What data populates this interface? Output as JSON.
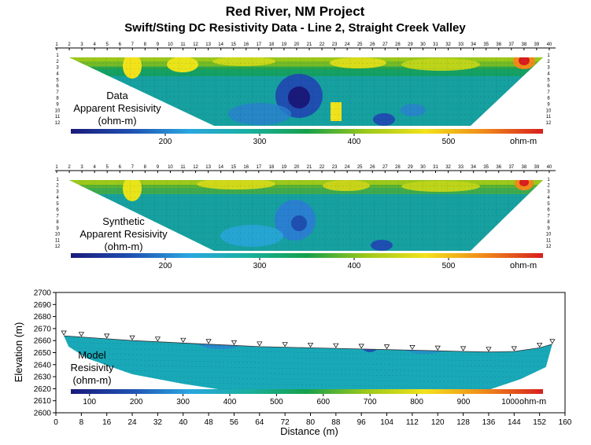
{
  "title": "Red River, NM Project",
  "subtitle": "Swift/Sting DC Resistivity Data - Line 2, Straight Creek Valley",
  "colors": {
    "scale": [
      "#1a1a7a",
      "#1f4fb0",
      "#2aa6e0",
      "#19b0a0",
      "#16a04a",
      "#9cc81a",
      "#f2e21a",
      "#f08a1a",
      "#d81e1e"
    ]
  },
  "chart_data": [
    {
      "type": "heatmap",
      "panel_label": [
        "Data",
        "Apparent Resisivity",
        "(ohm-m)"
      ],
      "electrode_labels": [
        "1",
        "2",
        "3",
        "4",
        "5",
        "6",
        "7",
        "8",
        "9",
        "10",
        "11",
        "12",
        "13",
        "14",
        "15",
        "16",
        "17",
        "18",
        "19",
        "20",
        "21",
        "22",
        "23",
        "24",
        "25",
        "26",
        "27",
        "28",
        "29",
        "30",
        "31",
        "32",
        "33",
        "34",
        "35",
        "36",
        "37",
        "38",
        "39",
        "40"
      ],
      "level_labels": [
        "1",
        "2",
        "3",
        "4",
        "5",
        "6",
        "7",
        "8",
        "9",
        "10",
        "11",
        "12"
      ],
      "colorbar": {
        "ticks": [
          "200",
          "300",
          "400",
          "500"
        ],
        "unit": "ohm-m",
        "range": [
          100,
          600
        ]
      }
    },
    {
      "type": "heatmap",
      "panel_label": [
        "Synthetic",
        "Apparent Resisivity",
        "(ohm-m)"
      ],
      "electrode_labels": [
        "1",
        "2",
        "3",
        "4",
        "5",
        "6",
        "7",
        "8",
        "9",
        "10",
        "11",
        "12",
        "13",
        "14",
        "15",
        "16",
        "17",
        "18",
        "19",
        "20",
        "21",
        "22",
        "23",
        "24",
        "25",
        "26",
        "27",
        "28",
        "29",
        "30",
        "31",
        "32",
        "33",
        "34",
        "35",
        "36",
        "37",
        "38",
        "39",
        "40"
      ],
      "level_labels": [
        "1",
        "2",
        "3",
        "4",
        "5",
        "6",
        "7",
        "8",
        "9",
        "10",
        "11",
        "12"
      ],
      "colorbar": {
        "ticks": [
          "200",
          "300",
          "400",
          "500"
        ],
        "unit": "ohm-m",
        "range": [
          100,
          600
        ]
      }
    },
    {
      "type": "heatmap",
      "panel_label": [
        "Model",
        "Resisivity",
        "(ohm-m)"
      ],
      "xlabel": "Distance (m)",
      "ylabel": "Elevation (m)",
      "xlim": [
        0,
        160
      ],
      "ylim": [
        2600,
        2700
      ],
      "x_ticks": [
        "0",
        "8",
        "16",
        "24",
        "32",
        "40",
        "48",
        "56",
        "64",
        "72",
        "80",
        "88",
        "96",
        "104",
        "112",
        "120",
        "128",
        "136",
        "144",
        "152",
        "160"
      ],
      "y_ticks": [
        "2600",
        "2610",
        "2620",
        "2630",
        "2640",
        "2650",
        "2660",
        "2670",
        "2680",
        "2690",
        "2700"
      ],
      "surface_elevations": [
        [
          2.5,
          2666
        ],
        [
          8,
          2665
        ],
        [
          16,
          2663.5
        ],
        [
          24,
          2662
        ],
        [
          32,
          2661
        ],
        [
          40,
          2660
        ],
        [
          48,
          2659
        ],
        [
          56,
          2658
        ],
        [
          64,
          2657
        ],
        [
          72,
          2656.5
        ],
        [
          80,
          2656
        ],
        [
          88,
          2655.5
        ],
        [
          96,
          2655
        ],
        [
          104,
          2654.5
        ],
        [
          112,
          2654
        ],
        [
          120,
          2653.5
        ],
        [
          128,
          2653
        ],
        [
          136,
          2652.5
        ],
        [
          144,
          2653
        ],
        [
          152,
          2656
        ],
        [
          156,
          2659
        ]
      ],
      "colorbar": {
        "ticks": [
          "100",
          "200",
          "300",
          "400",
          "500",
          "600",
          "700",
          "800",
          "900",
          "1000"
        ],
        "unit": "ohm-m",
        "range": [
          60,
          1070
        ]
      }
    }
  ]
}
